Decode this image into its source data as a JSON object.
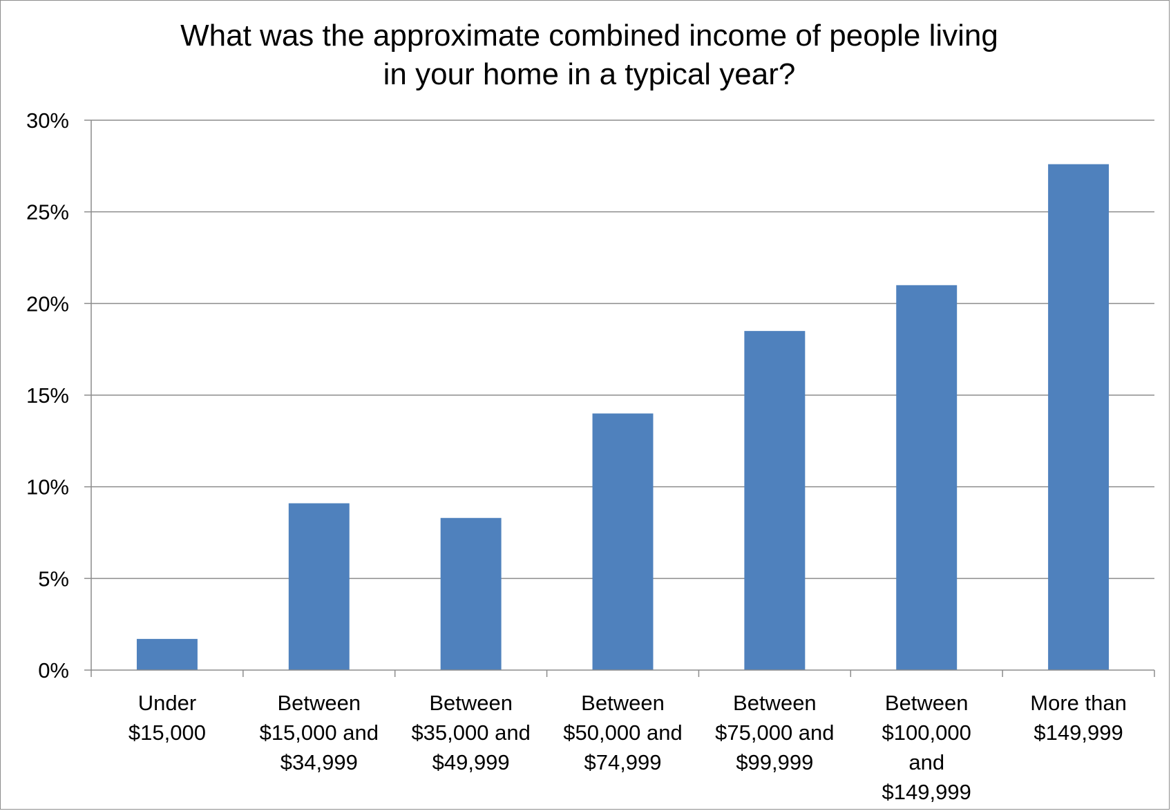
{
  "chart_data": {
    "type": "bar",
    "title_lines": [
      "What was the approximate combined income of people living",
      "in your home in a typical year?"
    ],
    "categories": [
      [
        "Under",
        "$15,000"
      ],
      [
        "Between",
        "$15,000 and",
        "$34,999"
      ],
      [
        "Between",
        "$35,000 and",
        "$49,999"
      ],
      [
        "Between",
        "$50,000 and",
        "$74,999"
      ],
      [
        "Between",
        "$75,000 and",
        "$99,999"
      ],
      [
        "Between",
        "$100,000",
        "and",
        "$149,999"
      ],
      [
        "More than",
        "$149,999"
      ]
    ],
    "values": [
      1.7,
      9.1,
      8.3,
      14.0,
      18.5,
      21.0,
      27.6
    ],
    "ylim": [
      0,
      30
    ],
    "yticks": [
      0,
      5,
      10,
      15,
      20,
      25,
      30
    ],
    "ytick_labels": [
      "0%",
      "5%",
      "10%",
      "15%",
      "20%",
      "25%",
      "30%"
    ],
    "grid": true,
    "legend": "none",
    "bar_color": "#4f81bd",
    "grid_color": "#8c8c8c"
  }
}
